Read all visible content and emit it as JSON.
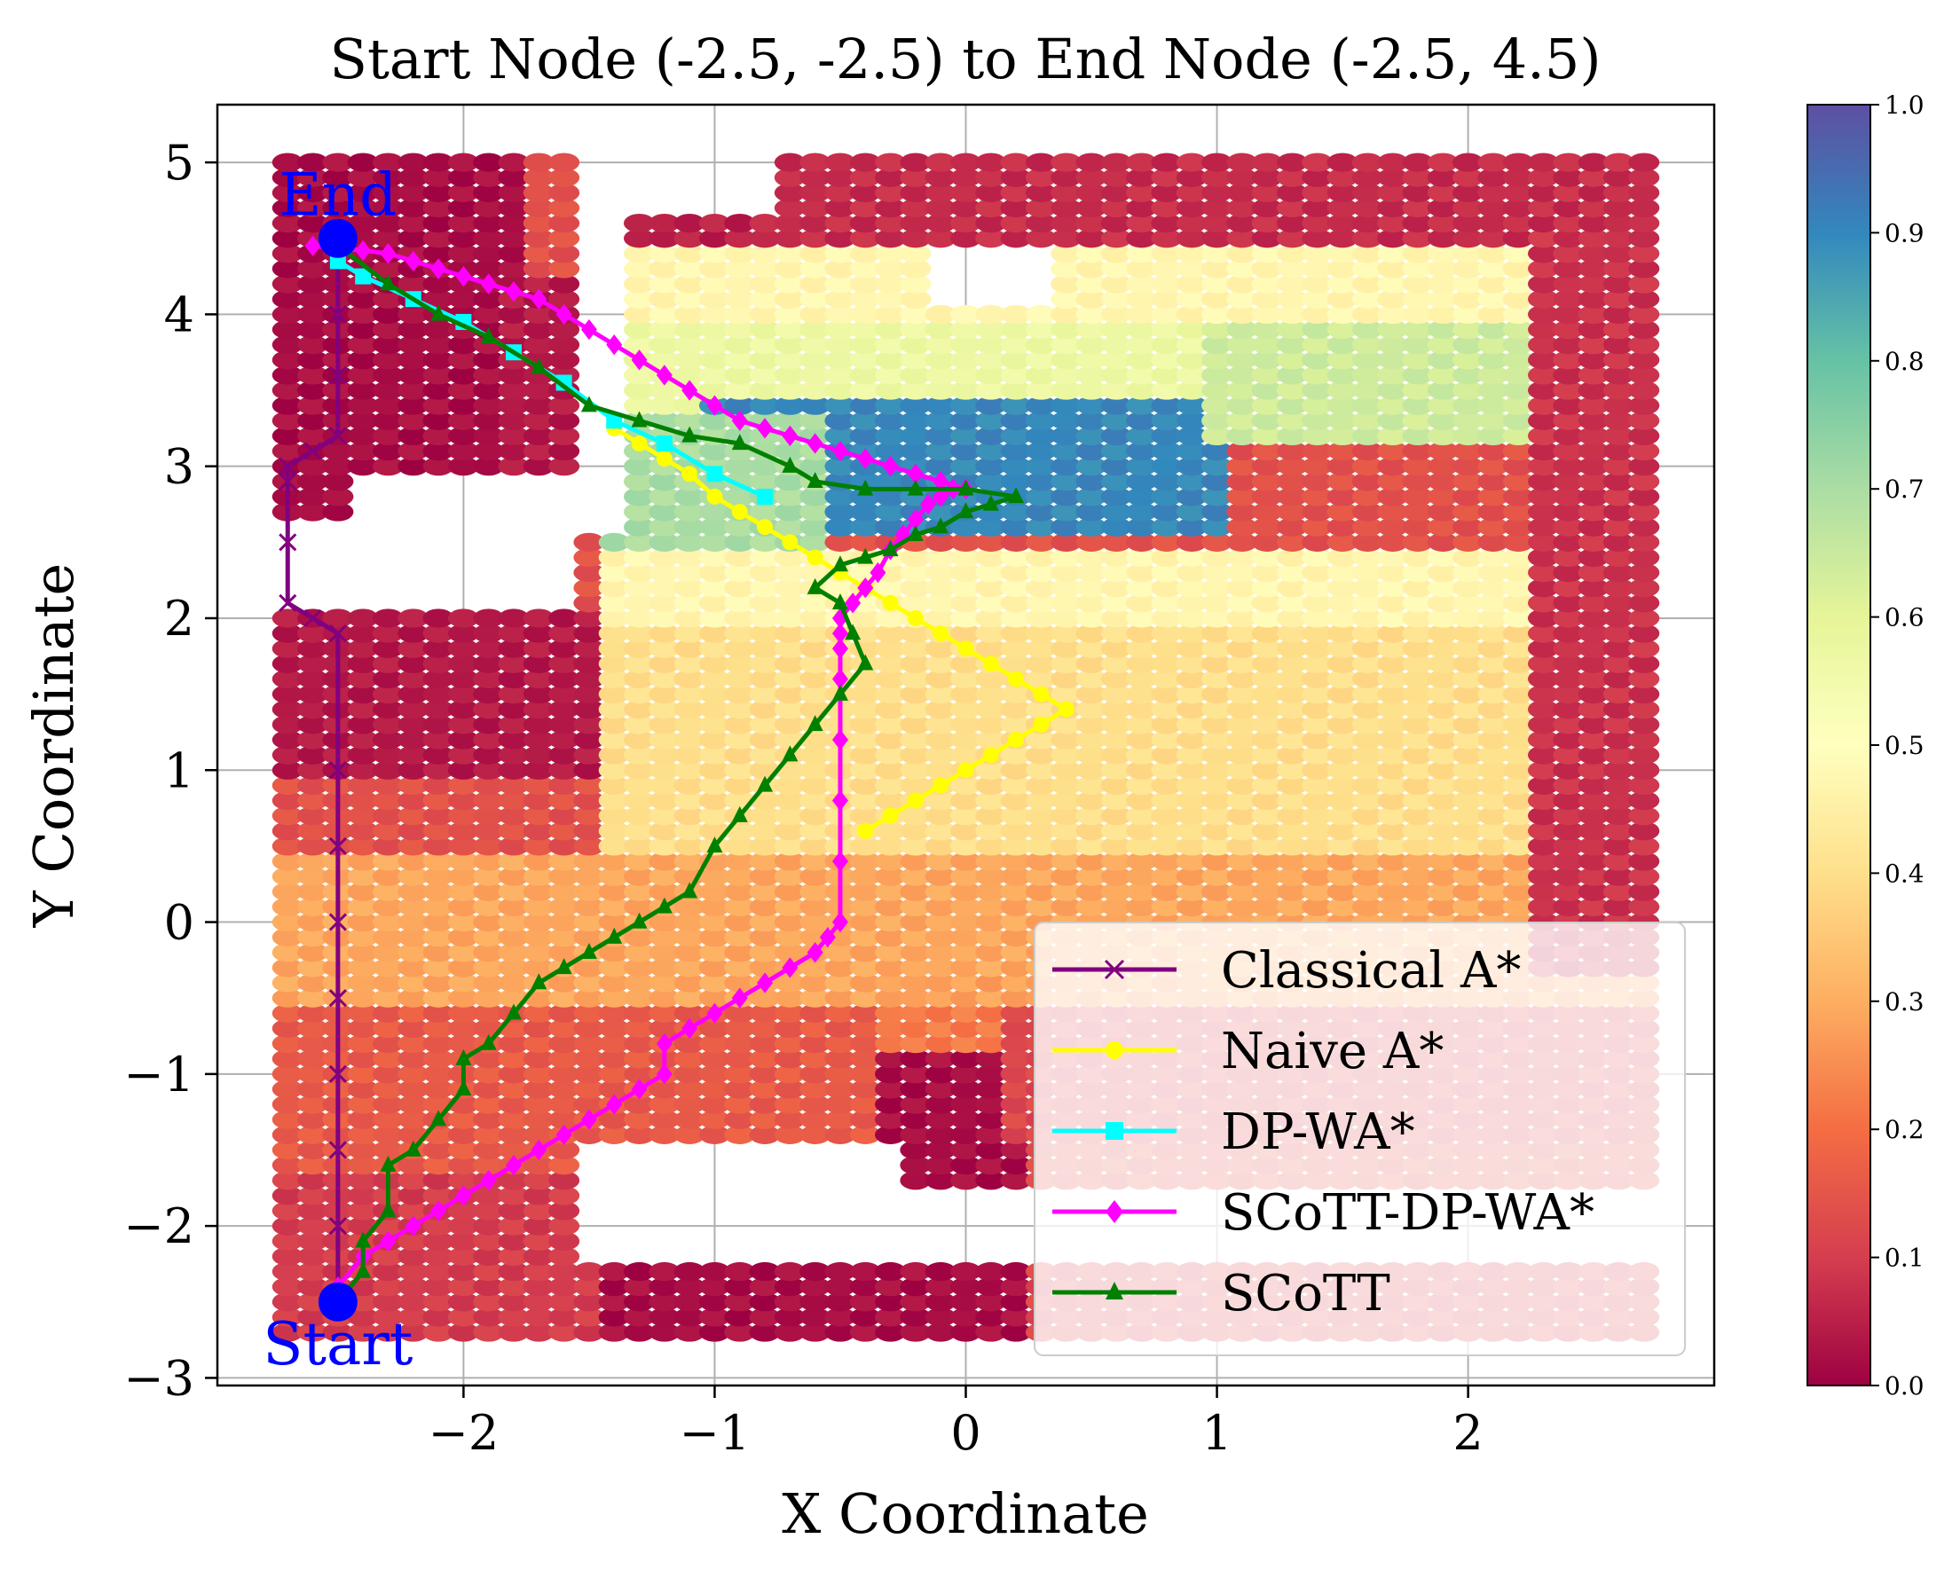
{
  "chart_data": {
    "type": "scatter",
    "title": "Start Node (-2.5, -2.5) to End Node (-2.5, 4.5)",
    "xlabel": "X Coordinate",
    "ylabel": "Y Coordinate",
    "xlim": [
      -2.98,
      2.98
    ],
    "ylim": [
      -3.05,
      5.38
    ],
    "xticks": [
      -2,
      -1,
      0,
      1,
      2
    ],
    "yticks": [
      -3,
      -2,
      -1,
      0,
      1,
      2,
      3,
      4,
      5
    ],
    "xtick_labels": [
      "−2",
      "−1",
      "0",
      "1",
      "2"
    ],
    "ytick_labels": [
      "−3",
      "−2",
      "−1",
      "0",
      "1",
      "2",
      "3",
      "4",
      "5"
    ],
    "grid": true,
    "legend_position": "bottom-right",
    "colorbar": {
      "range": [
        0.0,
        1.0
      ],
      "colormap": "Spectral",
      "ticks": [
        0.0,
        0.1,
        0.2,
        0.3,
        0.4,
        0.5,
        0.6,
        0.7,
        0.8,
        0.9,
        1.0
      ],
      "tick_labels": [
        "0.0",
        "0.1",
        "0.2",
        "0.3",
        "0.4",
        "0.5",
        "0.6",
        "0.7",
        "0.8",
        "0.9",
        "1.0"
      ],
      "colors": [
        "#9e0142",
        "#d53e4f",
        "#f46d43",
        "#fdae61",
        "#fee08b",
        "#ffffbf",
        "#e6f598",
        "#abdda4",
        "#66c2a5",
        "#3288bd",
        "#5e4fa2"
      ]
    },
    "grid_cells": {
      "x_range": [
        -2.7,
        2.7
      ],
      "y_range": [
        -2.7,
        5.0
      ],
      "step": 0.1,
      "value_regions": [
        {
          "x": [
            -2.7,
            -1.8
          ],
          "y": [
            2.0,
            5.0
          ],
          "value": 0.0
        },
        {
          "x": [
            -1.8,
            -1.5
          ],
          "y": [
            2.6,
            4.2
          ],
          "value": 0.02
        },
        {
          "x": [
            -2.7,
            -1.5
          ],
          "y": [
            1.0,
            2.0
          ],
          "value": 0.02
        },
        {
          "x": [
            -1.4,
            -0.7
          ],
          "y": [
            4.3,
            4.6
          ],
          "value": 0.03
        },
        {
          "x": [
            -0.8,
            2.7
          ],
          "y": [
            4.5,
            5.0
          ],
          "value": 0.05
        },
        {
          "x": [
            2.3,
            2.7
          ],
          "y": [
            -1.4,
            4.5
          ],
          "value": 0.06
        },
        {
          "x": [
            -1.4,
            2.2
          ],
          "y": [
            3.9,
            4.4
          ],
          "value": 0.45
        },
        {
          "x": [
            -1.4,
            1.2
          ],
          "y": [
            3.4,
            3.9
          ],
          "value": 0.55
        },
        {
          "x": [
            -1.0,
            1.0
          ],
          "y": [
            2.6,
            3.4
          ],
          "value": 0.88
        },
        {
          "x": [
            -1.4,
            -0.6
          ],
          "y": [
            2.4,
            3.3
          ],
          "value": 0.68
        },
        {
          "x": [
            1.0,
            2.2
          ],
          "y": [
            3.2,
            3.9
          ],
          "value": 0.62
        },
        {
          "x": [
            -1.4,
            2.2
          ],
          "y": [
            1.9,
            2.4
          ],
          "value": 0.45
        },
        {
          "x": [
            -1.4,
            2.2
          ],
          "y": [
            0.4,
            1.9
          ],
          "value": 0.38
        },
        {
          "x": [
            -2.7,
            2.2
          ],
          "y": [
            -0.6,
            0.4
          ],
          "value": 0.27
        },
        {
          "x": [
            -2.7,
            -0.3
          ],
          "y": [
            -1.7,
            -0.6
          ],
          "value": 0.14
        },
        {
          "x": [
            -0.3,
            2.7
          ],
          "y": [
            -0.6,
            -0.4
          ],
          "value": 0.26
        },
        {
          "x": [
            -0.3,
            1.0
          ],
          "y": [
            -1.4,
            -0.6
          ],
          "value": 0.2
        },
        {
          "x": [
            -0.3,
            0.2
          ],
          "y": [
            -1.7,
            -0.9
          ],
          "value": 0.0
        },
        {
          "x": [
            0.2,
            2.7
          ],
          "y": [
            -1.4,
            -0.6
          ],
          "value": 0.1
        },
        {
          "x": [
            0.2,
            2.7
          ],
          "y": [
            -2.7,
            -2.3
          ],
          "value": 0.1
        },
        {
          "x": [
            -1.5,
            0.2
          ],
          "y": [
            -2.7,
            -2.3
          ],
          "value": 0.0
        },
        {
          "x": [
            -2.7,
            -1.5
          ],
          "y": [
            -2.7,
            -1.7
          ],
          "value": 0.08
        }
      ],
      "empty_regions": [
        {
          "x": [
            -2.7,
            -1.6
          ],
          "y": [
            2.1,
            2.6
          ]
        },
        {
          "x": [
            -1.5,
            2.7
          ],
          "y": [
            -2.2,
            -1.8
          ]
        },
        {
          "x": [
            -1.5,
            -0.3
          ],
          "y": [
            -1.8,
            -1.5
          ]
        },
        {
          "x": [
            -2.4,
            -1.5
          ],
          "y": [
            2.65,
            2.95
          ]
        },
        {
          "x": [
            -0.1,
            0.35
          ],
          "y": [
            4.1,
            4.45
          ]
        },
        {
          "x": [
            -1.5,
            -1.4
          ],
          "y": [
            2.6,
            4.6
          ]
        },
        {
          "x": [
            -1.5,
            -0.8
          ],
          "y": [
            4.65,
            5.0
          ]
        }
      ]
    },
    "series": [
      {
        "name": "Classical A*",
        "color": "#800080",
        "marker": "x",
        "x": [
          -2.5,
          -2.5,
          -2.5,
          -2.5,
          -2.5,
          -2.5,
          -2.5,
          -2.5,
          -2.5,
          -2.6,
          -2.7,
          -2.7,
          -2.7,
          -2.7,
          -2.6,
          -2.5,
          -2.5,
          -2.5,
          -2.5
        ],
        "y": [
          -2.5,
          -2.0,
          -1.5,
          -1.0,
          -0.5,
          0.0,
          0.5,
          1.0,
          1.9,
          2.0,
          2.1,
          2.5,
          2.9,
          3.0,
          3.1,
          3.2,
          3.6,
          4.0,
          4.5
        ]
      },
      {
        "name": "Naive A*",
        "color": "#ffff00",
        "marker": "o",
        "x": [
          -1.4,
          -1.3,
          -1.2,
          -1.1,
          -1.0,
          -0.9,
          -0.8,
          -0.7,
          -0.6,
          -0.5,
          -0.4,
          -0.3,
          -0.2,
          -0.1,
          0.0,
          0.1,
          0.2,
          0.3,
          0.4,
          0.3,
          0.2,
          0.1,
          0.0,
          -0.1,
          -0.2,
          -0.3,
          -0.4
        ],
        "y": [
          3.25,
          3.15,
          3.05,
          2.95,
          2.8,
          2.7,
          2.6,
          2.5,
          2.4,
          2.3,
          2.2,
          2.1,
          2.0,
          1.9,
          1.8,
          1.7,
          1.6,
          1.5,
          1.4,
          1.3,
          1.2,
          1.1,
          1.0,
          0.9,
          0.8,
          0.7,
          0.6
        ]
      },
      {
        "name": "DP-WA*",
        "color": "#00ffff",
        "marker": "s",
        "x": [
          -2.5,
          -2.4,
          -2.2,
          -2.0,
          -1.8,
          -1.6,
          -1.4,
          -1.2,
          -1.0,
          -0.8
        ],
        "y": [
          4.35,
          4.25,
          4.1,
          3.95,
          3.75,
          3.55,
          3.3,
          3.15,
          2.95,
          2.8
        ]
      },
      {
        "name": "SCoTT-DP-WA*",
        "color": "#ff00ff",
        "marker": "D",
        "x": [
          -2.5,
          -2.4,
          -2.3,
          -2.2,
          -2.1,
          -2.0,
          -1.9,
          -1.8,
          -1.7,
          -1.6,
          -1.5,
          -1.4,
          -1.3,
          -1.2,
          -1.2,
          -1.1,
          -1.0,
          -0.9,
          -0.8,
          -0.7,
          -0.6,
          -0.55,
          -0.5,
          -0.5,
          -0.5,
          -0.5,
          -0.5,
          -0.5,
          -0.5,
          -0.5,
          -0.45,
          -0.4,
          -0.35,
          -0.3,
          -0.25,
          -0.2,
          -0.15,
          -0.1,
          -0.05,
          0.0,
          -0.1,
          -0.2,
          -0.3,
          -0.4,
          -0.5,
          -0.6,
          -0.7,
          -0.8,
          -0.9,
          -1.0,
          -1.1,
          -1.2,
          -1.3,
          -1.4,
          -1.5,
          -1.6,
          -1.7,
          -1.8,
          -1.9,
          -2.0,
          -2.1,
          -2.2,
          -2.3,
          -2.4,
          -2.6
        ],
        "y": [
          -2.4,
          -2.2,
          -2.1,
          -2.0,
          -1.9,
          -1.8,
          -1.7,
          -1.6,
          -1.5,
          -1.4,
          -1.3,
          -1.2,
          -1.1,
          -1.0,
          -0.8,
          -0.7,
          -0.6,
          -0.5,
          -0.4,
          -0.3,
          -0.2,
          -0.1,
          0.0,
          0.4,
          0.8,
          1.2,
          1.6,
          1.8,
          1.9,
          2.0,
          2.1,
          2.2,
          2.3,
          2.45,
          2.55,
          2.65,
          2.75,
          2.8,
          2.85,
          2.85,
          2.9,
          2.95,
          3.0,
          3.05,
          3.1,
          3.15,
          3.2,
          3.25,
          3.3,
          3.4,
          3.5,
          3.6,
          3.7,
          3.8,
          3.9,
          4.0,
          4.1,
          4.15,
          4.2,
          4.25,
          4.3,
          4.35,
          4.4,
          4.42,
          4.45
        ]
      },
      {
        "name": "SCoTT",
        "color": "#008000",
        "marker": "^",
        "x": [
          -2.5,
          -2.4,
          -2.4,
          -2.3,
          -2.3,
          -2.2,
          -2.1,
          -2.0,
          -2.0,
          -1.9,
          -1.8,
          -1.7,
          -1.6,
          -1.5,
          -1.4,
          -1.3,
          -1.2,
          -1.1,
          -1.0,
          -0.9,
          -0.8,
          -0.7,
          -0.6,
          -0.5,
          -0.4,
          -0.45,
          -0.5,
          -0.6,
          -0.5,
          -0.4,
          -0.3,
          -0.2,
          -0.1,
          0.0,
          0.1,
          0.2,
          0.0,
          -0.2,
          -0.4,
          -0.6,
          -0.7,
          -0.9,
          -1.1,
          -1.3,
          -1.5,
          -1.7,
          -1.9,
          -2.1,
          -2.3,
          -2.5
        ],
        "y": [
          -2.5,
          -2.3,
          -2.1,
          -1.9,
          -1.6,
          -1.5,
          -1.3,
          -1.1,
          -0.9,
          -0.8,
          -0.6,
          -0.4,
          -0.3,
          -0.2,
          -0.1,
          0.0,
          0.1,
          0.2,
          0.5,
          0.7,
          0.9,
          1.1,
          1.3,
          1.5,
          1.7,
          1.9,
          2.1,
          2.2,
          2.35,
          2.4,
          2.45,
          2.55,
          2.6,
          2.7,
          2.75,
          2.8,
          2.85,
          2.85,
          2.85,
          2.9,
          3.0,
          3.15,
          3.2,
          3.3,
          3.4,
          3.65,
          3.85,
          4.0,
          4.2,
          4.45
        ]
      }
    ],
    "nodes": [
      {
        "label": "Start",
        "x": -2.5,
        "y": -2.5,
        "color": "#0000ff"
      },
      {
        "label": "End",
        "x": -2.5,
        "y": 4.5,
        "color": "#0000ff"
      }
    ]
  }
}
